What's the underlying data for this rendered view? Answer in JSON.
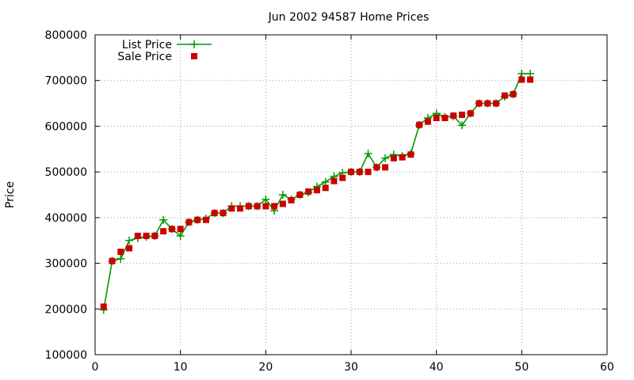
{
  "chart_data": {
    "type": "line",
    "title": "Jun 2002 94587 Home Prices",
    "xlabel": "",
    "ylabel": "Price",
    "xlim": [
      0,
      60
    ],
    "ylim": [
      100000,
      800000
    ],
    "xticks": [
      0,
      10,
      20,
      30,
      40,
      50,
      60
    ],
    "yticks": [
      100000,
      200000,
      300000,
      400000,
      500000,
      600000,
      700000,
      800000
    ],
    "grid": true,
    "legend_position": "top-left",
    "x": [
      1,
      2,
      3,
      4,
      5,
      6,
      7,
      8,
      9,
      10,
      11,
      12,
      13,
      14,
      15,
      16,
      17,
      18,
      19,
      20,
      21,
      22,
      23,
      24,
      25,
      26,
      27,
      28,
      29,
      30,
      31,
      32,
      33,
      34,
      35,
      36,
      37,
      38,
      39,
      40,
      41,
      42,
      43,
      44,
      45,
      46,
      47,
      48,
      49,
      50,
      51
    ],
    "series": [
      {
        "name": "List Price",
        "style": "lines+points",
        "marker": "plus",
        "color": "#009900",
        "values": [
          198000,
          305000,
          310000,
          350000,
          355000,
          358000,
          360000,
          395000,
          375000,
          360000,
          390000,
          395000,
          398000,
          410000,
          410000,
          425000,
          425000,
          425000,
          425000,
          440000,
          415000,
          450000,
          440000,
          450000,
          455000,
          468000,
          478000,
          490000,
          498000,
          500000,
          500000,
          540000,
          510000,
          530000,
          538000,
          535000,
          540000,
          603000,
          618000,
          628000,
          620000,
          622000,
          602000,
          628000,
          650000,
          650000,
          650000,
          665000,
          670000,
          715000,
          715000
        ]
      },
      {
        "name": "Sale Price",
        "style": "points",
        "marker": "square",
        "color": "#cc0000",
        "values": [
          205000,
          305000,
          325000,
          333000,
          360000,
          360000,
          360000,
          370000,
          375000,
          375000,
          390000,
          395000,
          395000,
          410000,
          410000,
          420000,
          420000,
          425000,
          425000,
          425000,
          425000,
          430000,
          438000,
          450000,
          457000,
          460000,
          465000,
          480000,
          487000,
          500000,
          500000,
          500000,
          510000,
          510000,
          530000,
          532000,
          538000,
          603000,
          610000,
          618000,
          618000,
          623000,
          625000,
          628000,
          650000,
          650000,
          650000,
          667000,
          670000,
          702000,
          702000
        ]
      }
    ]
  }
}
